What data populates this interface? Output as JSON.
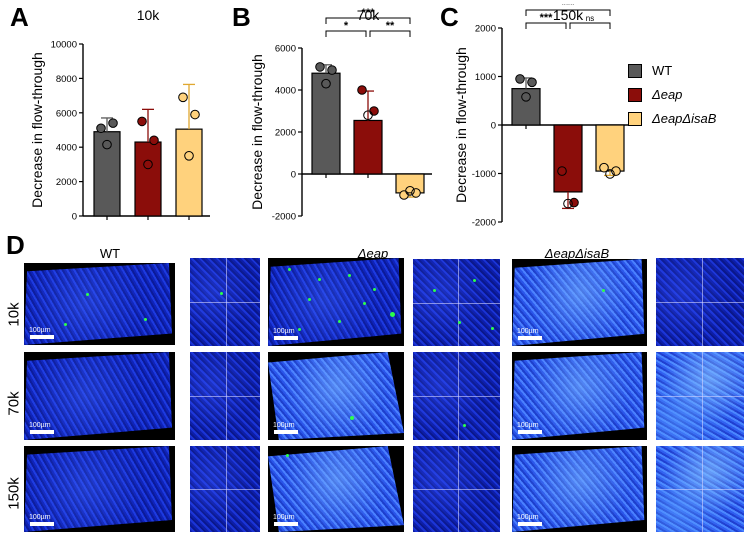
{
  "panel_letters": {
    "a": "A",
    "b": "B",
    "c": "C",
    "d": "D"
  },
  "colors": {
    "wt": "#595959",
    "eap": "#8b0d0a",
    "eapisab": "#ffd27d"
  },
  "legend": [
    {
      "label": "WT",
      "italic": false
    },
    {
      "label": "Δeap",
      "italic": true
    },
    {
      "label": "ΔeapΔisaB",
      "italic": true
    }
  ],
  "chart_data": [
    {
      "type": "bar",
      "title": "10k",
      "ylabel": "Decrease in flow-through",
      "ylim": [
        0,
        10000
      ],
      "yticks": [
        0,
        2000,
        4000,
        6000,
        8000,
        10000
      ],
      "ytick_labels": [
        "0",
        "2000",
        "4000",
        "6000",
        "8000",
        "10000"
      ],
      "categories": [
        "WT",
        "Δeap",
        "ΔeapΔisaB"
      ],
      "values": [
        4900,
        4300,
        5050
      ],
      "errors": [
        800,
        1900,
        2600
      ],
      "points": [
        [
          5100,
          5400,
          4150
        ],
        [
          5500,
          4400,
          3000
        ],
        [
          6900,
          5900,
          3500
        ]
      ],
      "significance": []
    },
    {
      "type": "bar",
      "title": "70k",
      "ylabel": "Decrease in flow-through",
      "ylim": [
        -2000,
        6000
      ],
      "yticks": [
        -2000,
        0,
        2000,
        4000,
        6000
      ],
      "ytick_labels": [
        "-2000",
        "0",
        "2000",
        "4000",
        "6000"
      ],
      "categories": [
        "WT",
        "Δeap",
        "ΔeapΔisaB"
      ],
      "values": [
        4800,
        2550,
        -900
      ],
      "errors": [
        400,
        1400,
        200
      ],
      "points": [
        [
          5100,
          4950,
          4300
        ],
        [
          4000,
          3000,
          2800
        ],
        [
          -1000,
          -900,
          -800
        ]
      ],
      "significance": [
        {
          "from": 0,
          "to": 1,
          "label": "*"
        },
        {
          "from": 1,
          "to": 2,
          "label": "**"
        },
        {
          "from": 0,
          "to": 2,
          "label": "***"
        }
      ]
    },
    {
      "type": "bar",
      "title": "150k",
      "ylabel": "Decrease in flow-through",
      "ylim": [
        -2000,
        2000
      ],
      "yticks": [
        -2000,
        -1000,
        0,
        1000,
        2000
      ],
      "ytick_labels": [
        "-2000",
        "-1000",
        "0",
        "1000",
        "2000"
      ],
      "categories": [
        "WT",
        "Δeap",
        "ΔeapΔisaB"
      ],
      "values": [
        750,
        -1380,
        -950
      ],
      "errors": [
        220,
        340,
        90
      ],
      "points": [
        [
          950,
          880,
          580
        ],
        [
          -950,
          -1600,
          -1620
        ],
        [
          -880,
          -950,
          -1010
        ]
      ],
      "significance": [
        {
          "from": 0,
          "to": 1,
          "label": "***"
        },
        {
          "from": 1,
          "to": 2,
          "label": "ns"
        },
        {
          "from": 0,
          "to": 2,
          "label": "***"
        }
      ]
    }
  ],
  "microscopy": {
    "columns": [
      {
        "label": "WT",
        "italic": false
      },
      {
        "label": "Δeap",
        "italic": true
      },
      {
        "label": "ΔeapΔisaB",
        "italic": true
      }
    ],
    "rows": [
      "10k",
      "70k",
      "150k"
    ],
    "scale_label": "100µm"
  }
}
